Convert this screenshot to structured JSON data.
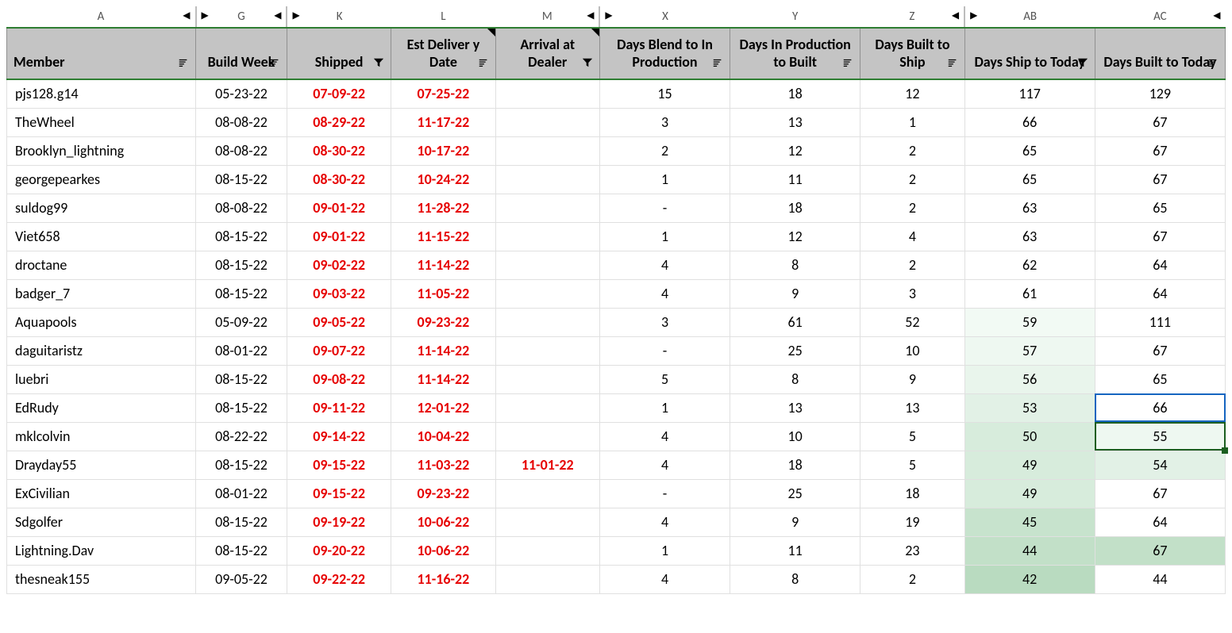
{
  "sheet": {
    "selected_cell": {
      "row": 11,
      "col": 9
    },
    "dark_selected_cell": {
      "row": 12,
      "col": 9
    },
    "heatmap": {
      "col_index": 8,
      "thresholds": [
        59,
        57,
        55,
        53,
        50,
        49,
        45,
        44,
        42
      ],
      "colors": [
        "#f2faf4",
        "#eef8f1",
        "#e9f5ec",
        "#e2f1e6",
        "#d7ecdc",
        "#d7ecdc",
        "#c7e3cd",
        "#c2e0c8",
        "#b9dbc0"
      ]
    },
    "heatmap2": {
      "col_index": 9,
      "cells": {
        "12": "#eef8f1",
        "13": "#e2f1e6",
        "16": "#c2e0c8",
        "18": "#b9dbc0"
      }
    },
    "column_letters": [
      {
        "label": "A",
        "left": false,
        "right": true
      },
      {
        "label": "G",
        "left": true,
        "right": true
      },
      {
        "label": "K",
        "left": true,
        "right": false
      },
      {
        "label": "L",
        "left": false,
        "right": false
      },
      {
        "label": "M",
        "left": false,
        "right": true
      },
      {
        "label": "X",
        "left": true,
        "right": false
      },
      {
        "label": "Y",
        "left": false,
        "right": false
      },
      {
        "label": "Z",
        "left": false,
        "right": true
      },
      {
        "label": "AB",
        "left": true,
        "right": false
      },
      {
        "label": "AC",
        "left": false,
        "right": true
      }
    ],
    "headers": [
      {
        "label": "Member",
        "align": "left",
        "icon": "sort",
        "note": false
      },
      {
        "label": "Build Week",
        "align": "center",
        "icon": "sort",
        "note": false
      },
      {
        "label": "Shipped",
        "align": "center",
        "icon": "funnel",
        "note": false
      },
      {
        "label": "Est Deliver y Date",
        "align": "center",
        "icon": "sort",
        "note": true
      },
      {
        "label": "Arrival at Dealer",
        "align": "center",
        "icon": "funnel",
        "note": true
      },
      {
        "label": "Days Blend to In Production",
        "align": "center",
        "icon": "sort",
        "note": false
      },
      {
        "label": "Days In Production to Built",
        "align": "center",
        "icon": "sort",
        "note": false
      },
      {
        "label": "Days Built to Ship",
        "align": "center",
        "icon": "sort",
        "note": false
      },
      {
        "label": "Days Ship to Today",
        "align": "center",
        "icon": "funnel",
        "note": false
      },
      {
        "label": "Days Built to Today",
        "align": "center",
        "icon": "sort",
        "note": false
      }
    ],
    "rows": [
      [
        "pjs128.g14",
        "05-23-22",
        "07-09-22",
        "07-25-22",
        "",
        "15",
        "18",
        "12",
        "117",
        "129"
      ],
      [
        "TheWheel",
        "08-08-22",
        "08-29-22",
        "11-17-22",
        "",
        "3",
        "13",
        "1",
        "66",
        "67"
      ],
      [
        "Brooklyn_lightning",
        "08-08-22",
        "08-30-22",
        "10-17-22",
        "",
        "2",
        "12",
        "2",
        "65",
        "67"
      ],
      [
        "georgepearkes",
        "08-15-22",
        "08-30-22",
        "10-24-22",
        "",
        "1",
        "11",
        "2",
        "65",
        "67"
      ],
      [
        "suldog99",
        "08-08-22",
        "09-01-22",
        "11-28-22",
        "",
        "-",
        "18",
        "2",
        "63",
        "65"
      ],
      [
        "Viet658",
        "08-15-22",
        "09-01-22",
        "11-15-22",
        "",
        "1",
        "12",
        "4",
        "63",
        "67"
      ],
      [
        "droctane",
        "08-15-22",
        "09-02-22",
        "11-14-22",
        "",
        "4",
        "8",
        "2",
        "62",
        "64"
      ],
      [
        "badger_7",
        "08-15-22",
        "09-03-22",
        "11-05-22",
        "",
        "4",
        "9",
        "3",
        "61",
        "64"
      ],
      [
        "Aquapools",
        "05-09-22",
        "09-05-22",
        "09-23-22",
        "",
        "3",
        "61",
        "52",
        "59",
        "111"
      ],
      [
        "daguitaristz",
        "08-01-22",
        "09-07-22",
        "11-14-22",
        "",
        "-",
        "25",
        "10",
        "57",
        "67"
      ],
      [
        "luebri",
        "08-15-22",
        "09-08-22",
        "11-14-22",
        "",
        "5",
        "8",
        "9",
        "56",
        "65"
      ],
      [
        "EdRudy",
        "08-15-22",
        "09-11-22",
        "12-01-22",
        "",
        "1",
        "13",
        "13",
        "53",
        "66"
      ],
      [
        "mklcolvin",
        "08-22-22",
        "09-14-22",
        "10-04-22",
        "",
        "4",
        "10",
        "5",
        "50",
        "55"
      ],
      [
        "Drayday55",
        "08-15-22",
        "09-15-22",
        "11-03-22",
        "11-01-22",
        "4",
        "18",
        "5",
        "49",
        "54"
      ],
      [
        "ExCivilian",
        "08-01-22",
        "09-15-22",
        "09-23-22",
        "",
        "-",
        "25",
        "18",
        "49",
        "67"
      ],
      [
        "Sdgolfer",
        "08-15-22",
        "09-19-22",
        "10-06-22",
        "",
        "4",
        "9",
        "19",
        "45",
        "64"
      ],
      [
        "Lightning.Dav",
        "08-15-22",
        "09-20-22",
        "10-06-22",
        "",
        "1",
        "11",
        "23",
        "44",
        "67"
      ],
      [
        "thesneak155",
        "09-05-22",
        "09-22-22",
        "11-16-22",
        "",
        "4",
        "8",
        "2",
        "42",
        "44"
      ]
    ],
    "red_cols": [
      2,
      3,
      4
    ],
    "col_classes": [
      "c-member",
      "c-build",
      "c-ship",
      "c-est",
      "c-arr",
      "c-blend",
      "c-prod",
      "c-built",
      "c-days",
      "c-today"
    ],
    "group_start_cols": [
      1,
      2,
      5,
      8
    ]
  },
  "styling": {
    "header_bg": "#c4c4c4",
    "header_border": "#909090",
    "table_border_green": "#2e7d32",
    "row_border": "#e0e0e0",
    "red_text": "#e60000",
    "selection_blue": "#1565c0",
    "selection_green": "#1b5e20",
    "font_family": "Calibri, Arial, sans-serif"
  }
}
